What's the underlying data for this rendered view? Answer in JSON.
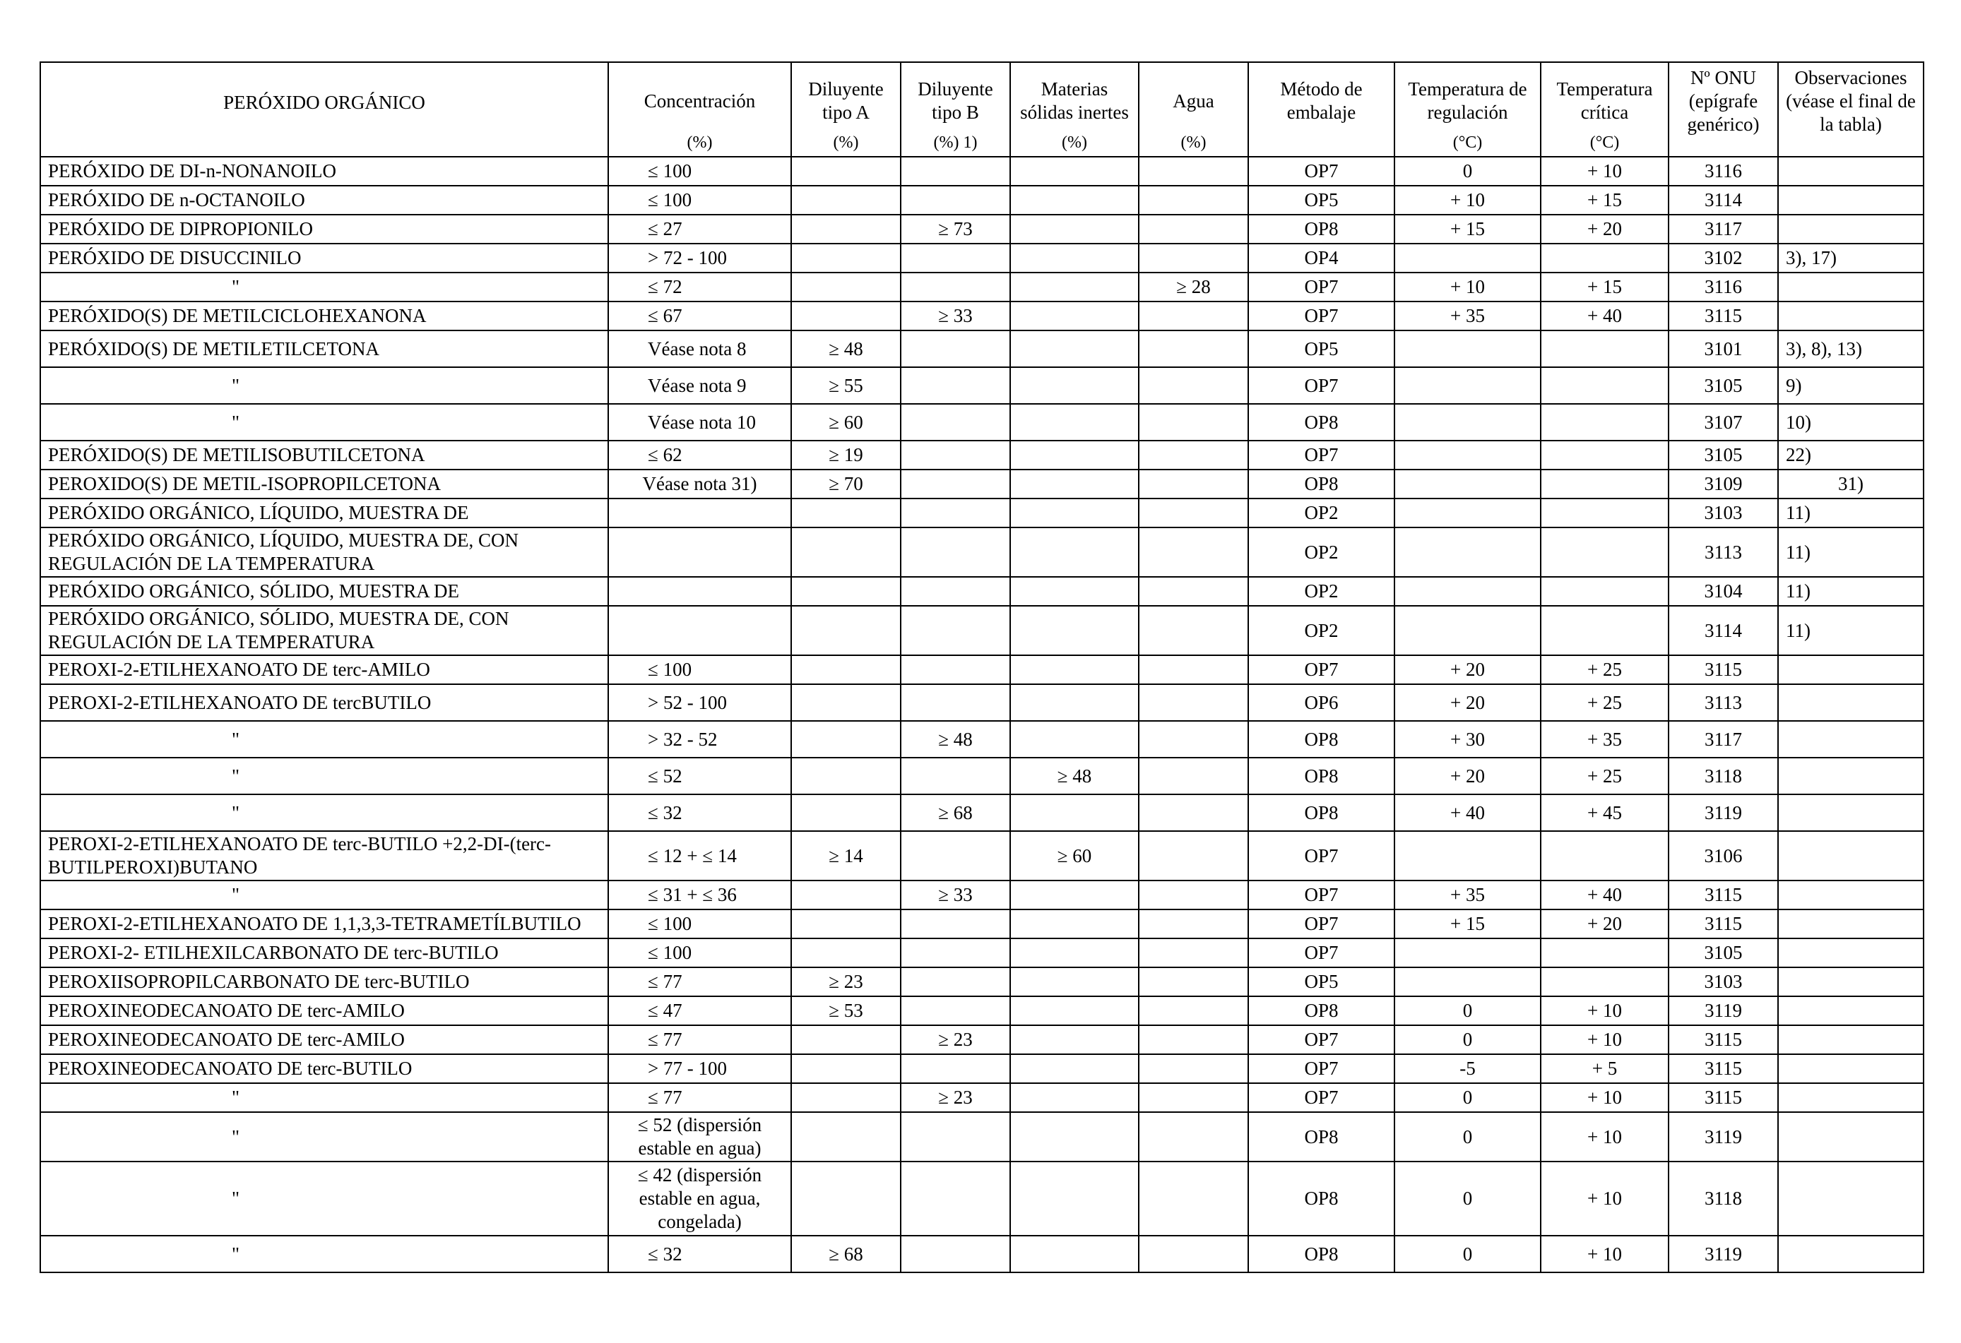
{
  "table": {
    "headers": [
      {
        "label": "PERÓXIDO ORGÁNICO",
        "unit": ""
      },
      {
        "label": "Concentración",
        "unit": "(%)"
      },
      {
        "label": "Diluyente tipo A",
        "unit": "(%)"
      },
      {
        "label": "Diluyente tipo B",
        "unit": "(%) 1)"
      },
      {
        "label": "Materias sólidas inertes",
        "unit": "(%)"
      },
      {
        "label": "Agua",
        "unit": "(%)"
      },
      {
        "label": "Método de embalaje",
        "unit": ""
      },
      {
        "label": "Temperatura de regulación",
        "unit": "(°C)"
      },
      {
        "label": "Temperatura crítica",
        "unit": "(°C)"
      },
      {
        "label": "Nº ONU (epígrafe genérico)",
        "unit": ""
      },
      {
        "label": "Observaciones (véase el final de la tabla)",
        "unit": ""
      }
    ],
    "rows": [
      [
        "PERÓXIDO DE DI-n-NONANOILO",
        "≤ 100",
        "",
        "",
        "",
        "",
        "OP7",
        "0",
        "+ 10",
        "3116",
        ""
      ],
      [
        "PERÓXIDO DE n-OCTANOILO",
        "≤ 100",
        "",
        "",
        "",
        "",
        "OP5",
        "+ 10",
        "+ 15",
        "3114",
        ""
      ],
      [
        "PERÓXIDO DE DIPROPIONILO",
        "≤ 27",
        "",
        "≥ 73",
        "",
        "",
        "OP8",
        "+ 15",
        "+ 20",
        "3117",
        ""
      ],
      [
        "PERÓXIDO DE DISUCCINILO",
        "> 72 - 100",
        "",
        "",
        "",
        "",
        "OP4",
        "",
        "",
        "3102",
        "3), 17)"
      ],
      [
        "\"",
        "≤ 72",
        "",
        "",
        "",
        "≥ 28",
        "OP7",
        "+ 10",
        "+ 15",
        "3116",
        ""
      ],
      [
        "PERÓXIDO(S) DE METILCICLOHEXANONA",
        "≤ 67",
        "",
        "≥ 33",
        "",
        "",
        "OP7",
        "+ 35",
        "+ 40",
        "3115",
        ""
      ],
      [
        "PERÓXIDO(S) DE METILETILCETONA",
        "Véase nota 8",
        "≥ 48",
        "",
        "",
        "",
        "OP5",
        "",
        "",
        "3101",
        "3), 8), 13)"
      ],
      [
        "\"",
        "Véase nota 9",
        "≥ 55",
        "",
        "",
        "",
        "OP7",
        "",
        "",
        "3105",
        "9)"
      ],
      [
        "\"",
        "Véase nota 10",
        "≥ 60",
        "",
        "",
        "",
        "OP8",
        "",
        "",
        "3107",
        "10)"
      ],
      [
        "PERÓXIDO(S) DE METILISOBUTILCETONA",
        "≤ 62",
        "≥ 19",
        "",
        "",
        "",
        "OP7",
        "",
        "",
        "3105",
        "22)"
      ],
      [
        "PEROXIDO(S) DE METIL-ISOPROPILCETONA",
        "Véase nota 31)",
        "≥ 70",
        "",
        "",
        "",
        "OP8",
        "",
        "",
        "3109",
        "31)"
      ],
      [
        "PERÓXIDO ORGÁNICO, LÍQUIDO, MUESTRA DE",
        "",
        "",
        "",
        "",
        "",
        "OP2",
        "",
        "",
        "3103",
        "11)"
      ],
      [
        "PERÓXIDO ORGÁNICO, LÍQUIDO, MUESTRA DE, CON REGULACIÓN DE LA TEMPERATURA",
        "",
        "",
        "",
        "",
        "",
        "OP2",
        "",
        "",
        "3113",
        "11)"
      ],
      [
        "PERÓXIDO ORGÁNICO, SÓLIDO, MUESTRA DE",
        "",
        "",
        "",
        "",
        "",
        "OP2",
        "",
        "",
        "3104",
        "11)"
      ],
      [
        "PERÓXIDO ORGÁNICO, SÓLIDO, MUESTRA DE, CON REGULACIÓN DE LA TEMPERATURA",
        "",
        "",
        "",
        "",
        "",
        "OP2",
        "",
        "",
        "3114",
        "11)"
      ],
      [
        "PEROXI-2-ETILHEXANOATO DE terc-AMILO",
        "≤ 100",
        "",
        "",
        "",
        "",
        "OP7",
        "+ 20",
        "+ 25",
        "3115",
        ""
      ],
      [
        "PEROXI-2-ETILHEXANOATO DE tercBUTILO",
        "> 52 - 100",
        "",
        "",
        "",
        "",
        "OP6",
        "+ 20",
        "+ 25",
        "3113",
        ""
      ],
      [
        "\"",
        "> 32 - 52",
        "",
        "≥ 48",
        "",
        "",
        "OP8",
        "+ 30",
        "+ 35",
        "3117",
        ""
      ],
      [
        "\"",
        "≤ 52",
        "",
        "",
        "≥ 48",
        "",
        "OP8",
        "+ 20",
        "+ 25",
        "3118",
        ""
      ],
      [
        "\"",
        "≤ 32",
        "",
        "≥ 68",
        "",
        "",
        "OP8",
        "+ 40",
        "+ 45",
        "3119",
        ""
      ],
      [
        "PEROXI-2-ETILHEXANOATO DE terc-BUTILO +2,2-DI-(terc-BUTILPEROXI)BUTANO",
        "≤ 12 + ≤ 14",
        "≥ 14",
        "",
        "≥ 60",
        "",
        "OP7",
        "",
        "",
        "3106",
        ""
      ],
      [
        "\"",
        "≤ 31 + ≤ 36",
        "",
        "≥ 33",
        "",
        "",
        "OP7",
        "+ 35",
        "+ 40",
        "3115",
        ""
      ],
      [
        "PEROXI-2-ETILHEXANOATO DE 1,1,3,3-TETRAMETÍLBUTILO",
        "≤ 100",
        "",
        "",
        "",
        "",
        "OP7",
        "+ 15",
        "+ 20",
        "3115",
        ""
      ],
      [
        "PEROXI-2- ETILHEXILCARBONATO DE terc-BUTILO",
        "≤ 100",
        "",
        "",
        "",
        "",
        "OP7",
        "",
        "",
        "3105",
        ""
      ],
      [
        "PEROXIISOPROPILCARBONATO DE terc-BUTILO",
        "≤ 77",
        "≥ 23",
        "",
        "",
        "",
        "OP5",
        "",
        "",
        "3103",
        ""
      ],
      [
        "PEROXINEODECANOATO DE terc-AMILO",
        "≤ 47",
        "≥ 53",
        "",
        "",
        "",
        "OP8",
        "0",
        "+ 10",
        "3119",
        ""
      ],
      [
        "PEROXINEODECANOATO DE terc-AMILO",
        "≤ 77",
        "",
        "≥ 23",
        "",
        "",
        "OP7",
        "0",
        "+ 10",
        "3115",
        ""
      ],
      [
        "PEROXINEODECANOATO DE terc-BUTILO",
        "> 77 - 100",
        "",
        "",
        "",
        "",
        "OP7",
        "-5",
        "+ 5",
        "3115",
        ""
      ],
      [
        "\"",
        "≤ 77",
        "",
        "≥ 23",
        "",
        "",
        "OP7",
        "0",
        "+ 10",
        "3115",
        ""
      ],
      [
        "\"",
        "≤ 52 (dispersión estable en agua)",
        "",
        "",
        "",
        "",
        "OP8",
        "0",
        "+ 10",
        "3119",
        ""
      ],
      [
        "\"",
        "≤ 42 (dispersión estable en agua, congelada)",
        "",
        "",
        "",
        "",
        "OP8",
        "0",
        "+ 10",
        "3118",
        ""
      ],
      [
        "\"",
        "≤ 32",
        "≥ 68",
        "",
        "",
        "",
        "OP8",
        "0",
        "+ 10",
        "3119",
        ""
      ]
    ]
  }
}
